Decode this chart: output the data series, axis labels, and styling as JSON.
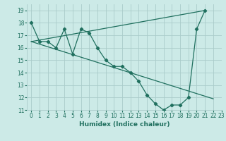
{
  "xlabel": "Humidex (Indice chaleur)",
  "xlim": [
    -0.5,
    23
  ],
  "ylim": [
    11,
    19.5
  ],
  "xticks": [
    0,
    1,
    2,
    3,
    4,
    5,
    6,
    7,
    8,
    9,
    10,
    11,
    12,
    13,
    14,
    15,
    16,
    17,
    18,
    19,
    20,
    21,
    22,
    23
  ],
  "yticks": [
    11,
    12,
    13,
    14,
    15,
    16,
    17,
    18,
    19
  ],
  "bg_color": "#cceae7",
  "line_color": "#1f6f5e",
  "grid_color": "#aaccca",
  "line1_x": [
    0,
    1,
    2,
    3,
    4,
    5,
    6,
    7,
    8,
    9,
    10,
    11,
    12,
    13,
    14,
    15,
    16,
    17,
    18,
    19,
    20,
    21
  ],
  "line1_y": [
    18,
    16.5,
    16.5,
    16,
    17.5,
    15.5,
    17.5,
    17.2,
    16,
    15,
    14.5,
    14.5,
    14,
    13.3,
    12.2,
    11.5,
    11,
    11.4,
    11.4,
    12,
    17.5,
    19
  ],
  "line2_x": [
    0,
    22
  ],
  "line2_y": [
    16.5,
    11.9
  ],
  "line3_x": [
    0,
    21
  ],
  "line3_y": [
    16.5,
    19
  ]
}
